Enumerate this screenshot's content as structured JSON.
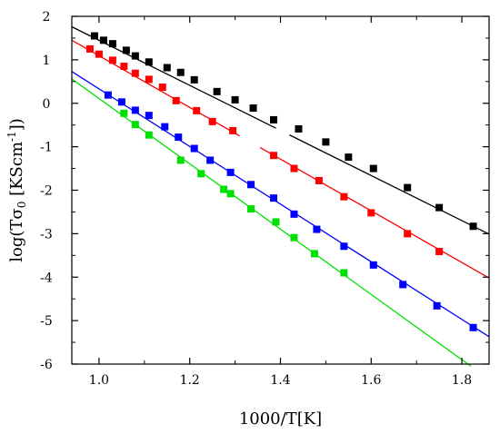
{
  "chart_data": {
    "type": "scatter",
    "title": "",
    "xlabel": "1000/T[K]",
    "ylabel": {
      "prefix": "log(T",
      "sigma": "σ",
      "sub": "0",
      "units_open": " [KScm",
      "sup": "-1",
      "units_close": "])"
    },
    "xlim": [
      0.94,
      1.86
    ],
    "ylim": [
      -6,
      2
    ],
    "xticks": [
      1.0,
      1.2,
      1.4,
      1.6,
      1.8
    ],
    "xtick_labels": [
      "1.0",
      "1.2",
      "1.4",
      "1.6",
      "1.8"
    ],
    "yticks": [
      2,
      1,
      0,
      -1,
      -2,
      -3,
      -4,
      -5,
      -6
    ],
    "ytick_labels": [
      "2",
      "1",
      "0",
      "-1",
      "-2",
      "-3",
      "-4",
      "-5",
      "-6"
    ],
    "grid": false,
    "legend": "none",
    "series": [
      {
        "color": "#000000",
        "points": [
          [
            0.99,
            1.55
          ],
          [
            1.01,
            1.45
          ],
          [
            1.03,
            1.37
          ],
          [
            1.06,
            1.22
          ],
          [
            1.08,
            1.09
          ],
          [
            1.11,
            0.95
          ],
          [
            1.15,
            0.82
          ],
          [
            1.18,
            0.71
          ],
          [
            1.21,
            0.54
          ],
          [
            1.26,
            0.27
          ],
          [
            1.3,
            0.08
          ],
          [
            1.34,
            -0.11
          ],
          [
            1.385,
            -0.38
          ],
          [
            1.44,
            -0.59
          ],
          [
            1.5,
            -0.89
          ],
          [
            1.55,
            -1.24
          ],
          [
            1.605,
            -1.5
          ],
          [
            1.68,
            -1.94
          ],
          [
            1.75,
            -2.4
          ],
          [
            1.825,
            -2.83
          ]
        ],
        "fit": [
          [
            0.94,
            1.76
          ],
          [
            1.86,
            -3.01
          ]
        ],
        "fit_gap": [
          1.39,
          1.42
        ]
      },
      {
        "color": "#ff0000",
        "points": [
          [
            0.98,
            1.25
          ],
          [
            1.0,
            1.13
          ],
          [
            1.03,
            0.99
          ],
          [
            1.055,
            0.85
          ],
          [
            1.08,
            0.69
          ],
          [
            1.11,
            0.55
          ],
          [
            1.14,
            0.37
          ],
          [
            1.17,
            0.06
          ],
          [
            1.215,
            -0.17
          ],
          [
            1.25,
            -0.42
          ],
          [
            1.295,
            -0.63
          ],
          [
            1.385,
            -1.2
          ],
          [
            1.43,
            -1.5
          ],
          [
            1.485,
            -1.78
          ],
          [
            1.54,
            -2.15
          ],
          [
            1.6,
            -2.52
          ],
          [
            1.68,
            -3.0
          ],
          [
            1.75,
            -3.41
          ]
        ],
        "fit": [
          [
            0.94,
            1.45
          ],
          [
            1.86,
            -4.02
          ]
        ],
        "fit_gap": [
          1.31,
          1.355
        ]
      },
      {
        "color": "#0000ff",
        "points": [
          [
            1.02,
            0.19
          ],
          [
            1.05,
            0.03
          ],
          [
            1.08,
            -0.16
          ],
          [
            1.11,
            -0.28
          ],
          [
            1.145,
            -0.54
          ],
          [
            1.175,
            -0.78
          ],
          [
            1.21,
            -1.04
          ],
          [
            1.245,
            -1.31
          ],
          [
            1.29,
            -1.59
          ],
          [
            1.335,
            -1.87
          ],
          [
            1.385,
            -2.18
          ],
          [
            1.43,
            -2.55
          ],
          [
            1.48,
            -2.9
          ],
          [
            1.54,
            -3.29
          ],
          [
            1.605,
            -3.72
          ],
          [
            1.67,
            -4.17
          ],
          [
            1.745,
            -4.66
          ],
          [
            1.825,
            -5.16
          ]
        ],
        "fit": [
          [
            0.94,
            0.73
          ],
          [
            1.86,
            -5.37
          ]
        ]
      },
      {
        "color": "#00e000",
        "points": [
          [
            1.055,
            -0.23
          ],
          [
            1.08,
            -0.49
          ],
          [
            1.11,
            -0.73
          ],
          [
            1.18,
            -1.31
          ],
          [
            1.225,
            -1.62
          ],
          [
            1.275,
            -1.98
          ],
          [
            1.29,
            -2.08
          ],
          [
            1.335,
            -2.43
          ],
          [
            1.39,
            -2.73
          ],
          [
            1.43,
            -3.09
          ],
          [
            1.475,
            -3.46
          ],
          [
            1.54,
            -3.9
          ]
        ],
        "fit": [
          [
            0.94,
            0.56
          ],
          [
            1.82,
            -6.05
          ]
        ]
      }
    ]
  }
}
